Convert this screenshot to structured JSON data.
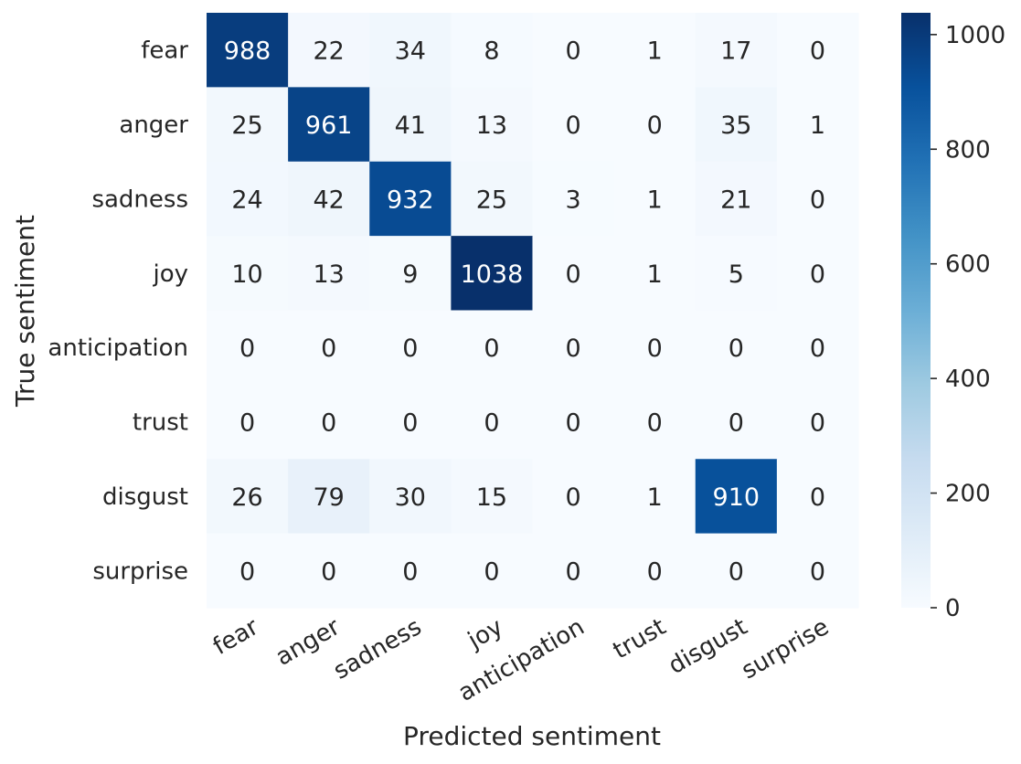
{
  "chart_data": {
    "type": "heatmap",
    "xlabel": "Predicted sentiment",
    "ylabel": "True sentiment",
    "x_categories": [
      "fear",
      "anger",
      "sadness",
      "joy",
      "anticipation",
      "trust",
      "disgust",
      "surprise"
    ],
    "y_categories": [
      "fear",
      "anger",
      "sadness",
      "joy",
      "anticipation",
      "trust",
      "disgust",
      "surprise"
    ],
    "values": [
      [
        988,
        22,
        34,
        8,
        0,
        1,
        17,
        0
      ],
      [
        25,
        961,
        41,
        13,
        0,
        0,
        35,
        1
      ],
      [
        24,
        42,
        932,
        25,
        3,
        1,
        21,
        0
      ],
      [
        10,
        13,
        9,
        1038,
        0,
        1,
        5,
        0
      ],
      [
        0,
        0,
        0,
        0,
        0,
        0,
        0,
        0
      ],
      [
        0,
        0,
        0,
        0,
        0,
        0,
        0,
        0
      ],
      [
        26,
        79,
        30,
        15,
        0,
        1,
        910,
        0
      ],
      [
        0,
        0,
        0,
        0,
        0,
        0,
        0,
        0
      ]
    ],
    "colormap": "Blues",
    "colorbar": {
      "min": 0,
      "max": 1038,
      "ticks": [
        0,
        200,
        400,
        600,
        800,
        1000
      ]
    },
    "x_tick_rotation_deg": 30,
    "annotations": true
  }
}
